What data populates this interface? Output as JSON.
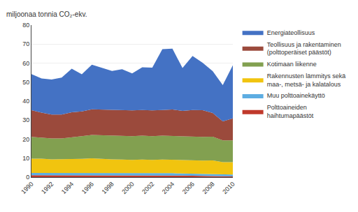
{
  "chart_data": {
    "type": "area",
    "stacked": true,
    "ylabel": "miljoonaa tonnia CO₂-ekv.",
    "x": [
      1990,
      1991,
      1992,
      1993,
      1994,
      1995,
      1996,
      1997,
      1998,
      1999,
      2000,
      2001,
      2002,
      2003,
      2004,
      2005,
      2006,
      2007,
      2008,
      2009,
      2010
    ],
    "series": [
      {
        "name": "Polttoaineiden\nhaihtumapäästöt",
        "color": "#c0392b",
        "values": [
          1.0,
          1.0,
          1.0,
          1.0,
          1.0,
          1.0,
          1.0,
          1.0,
          1.0,
          1.0,
          1.0,
          1.0,
          1.0,
          1.0,
          1.0,
          0.8,
          0.7,
          0.6,
          0.5,
          0.4,
          0.4
        ]
      },
      {
        "name": "Muu polttoainekäyttö",
        "color": "#5dade2",
        "values": [
          1.2,
          1.2,
          1.1,
          1.1,
          1.1,
          1.1,
          1.1,
          1.1,
          1.1,
          1.1,
          1.1,
          1.1,
          1.1,
          1.1,
          1.1,
          1.1,
          1.1,
          1.1,
          1.1,
          1.0,
          1.0
        ]
      },
      {
        "name": "Rakennusten lämmitys sekä\nmaa-, metsä- ja kalatalous",
        "color": "#f1c40f",
        "values": [
          7.5,
          7.5,
          7.3,
          7.3,
          7.5,
          7.5,
          7.8,
          7.5,
          7.3,
          7.2,
          7.0,
          7.2,
          7.0,
          7.2,
          7.0,
          7.0,
          7.0,
          7.0,
          7.2,
          6.5,
          6.5
        ]
      },
      {
        "name": "Kotimaan liikenne",
        "color": "#82a050",
        "values": [
          11.5,
          11.2,
          11.0,
          11.0,
          11.5,
          12.0,
          12.3,
          12.5,
          12.5,
          12.5,
          12.5,
          12.5,
          12.5,
          12.5,
          12.5,
          12.5,
          12.5,
          12.5,
          12.5,
          11.5,
          11.5
        ]
      },
      {
        "name": "Teollisuus ja rakentaminen\n(polttoperäiset päästöt)",
        "color": "#9b4a3c",
        "values": [
          14.0,
          13.0,
          12.5,
          12.5,
          13.0,
          13.0,
          13.5,
          13.5,
          13.5,
          13.5,
          13.5,
          13.5,
          13.5,
          13.5,
          14.0,
          13.5,
          14.0,
          14.0,
          12.5,
          10.0,
          11.5
        ]
      },
      {
        "name": "Energiateollisuus",
        "color": "#4472c4",
        "values": [
          19.0,
          18.0,
          18.5,
          19.5,
          23.0,
          19.5,
          23.5,
          22.0,
          20.5,
          21.5,
          19.5,
          22.5,
          22.5,
          32.0,
          32.0,
          22.5,
          28.5,
          25.0,
          22.0,
          19.0,
          28.0
        ]
      }
    ],
    "xlim": [
      1990,
      2010
    ],
    "xticks": [
      1990,
      1992,
      1994,
      1996,
      1998,
      2000,
      2002,
      2004,
      2006,
      2008,
      2010
    ],
    "ylim": [
      0,
      80
    ],
    "yticks": [
      0,
      10,
      20,
      30,
      40,
      50,
      60,
      70,
      80
    ],
    "grid": true,
    "legend": "right"
  }
}
